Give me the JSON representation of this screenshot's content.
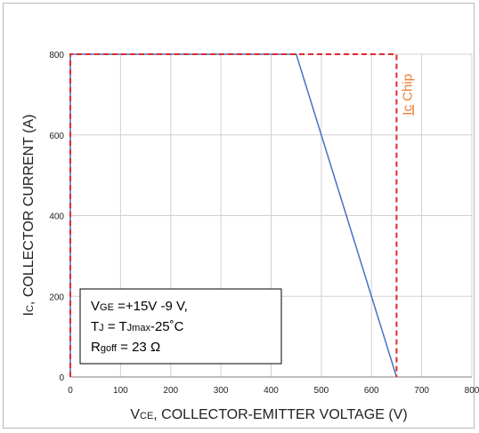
{
  "chart_data": {
    "type": "line",
    "xlabel": "VCE, COLLECTOR-EMITTER VOLTAGE (V)",
    "xlabel_parts": {
      "main": "V",
      "subscript": "CE",
      "rest": ", COLLECTOR-EMITTER VOLTAGE (V)"
    },
    "ylabel": "IC, COLLECTOR CURRENT (A)",
    "ylabel_parts": {
      "main": "I",
      "subscript": "C",
      "rest": ", COLLECTOR CURRENT (A)"
    },
    "xlim": [
      0,
      800
    ],
    "ylim": [
      0,
      800
    ],
    "x_ticks": [
      0,
      100,
      200,
      300,
      400,
      500,
      600,
      700,
      800
    ],
    "y_ticks": [
      0,
      200,
      400,
      600,
      800
    ],
    "grid": true,
    "series": [
      {
        "color": "#4472c4",
        "style": "solid",
        "x": [
          0,
          0,
          450,
          650
        ],
        "y": [
          0,
          800,
          800,
          0
        ]
      },
      {
        "name": "Ic Chip",
        "color": "#e0282e",
        "style": "dashed",
        "x": [
          0,
          0,
          650,
          650
        ],
        "y": [
          0,
          800,
          800,
          0
        ]
      }
    ],
    "annotations": [
      {
        "text": "Ic Chip",
        "color": "#ed7d31",
        "underline_part": "Ic",
        "rest": " Chip",
        "x": 680,
        "y": 700,
        "rotation": -90
      }
    ],
    "legend_box": {
      "placement": "bottom-left",
      "lines": [
        {
          "main": "V",
          "subscript": "GE",
          "rest": " =+15V -9 V,"
        },
        {
          "main": "T",
          "subscript": "J",
          "rest": " = T",
          "subscript2": "Jmax",
          "rest2": "-25˚C"
        },
        {
          "main": "R",
          "subscript": "goff",
          "rest": " = 23 Ω"
        }
      ]
    }
  }
}
